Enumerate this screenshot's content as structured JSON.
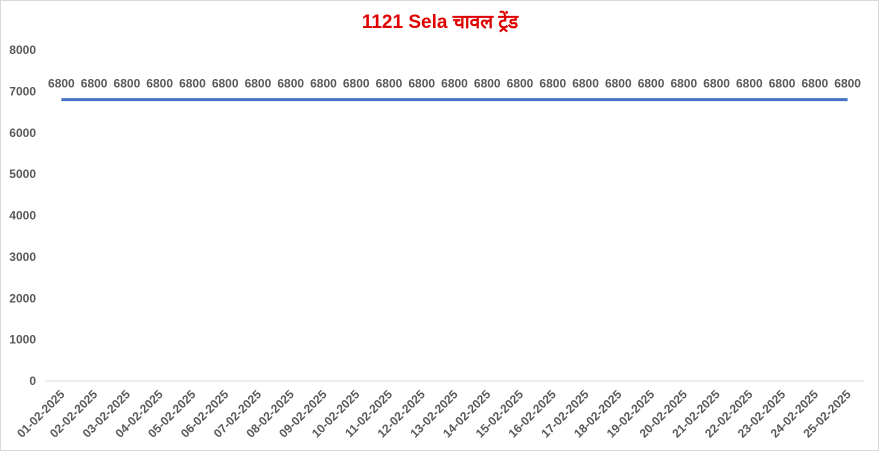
{
  "chart_data": {
    "type": "line",
    "title": "1121 Sela चावल ट्रेंड",
    "categories": [
      "01-02-2025",
      "02-02-2025",
      "03-02-2025",
      "04-02-2025",
      "05-02-2025",
      "06-02-2025",
      "07-02-2025",
      "08-02-2025",
      "09-02-2025",
      "10-02-2025",
      "11-02-2025",
      "12-02-2025",
      "13-02-2025",
      "14-02-2025",
      "15-02-2025",
      "16-02-2025",
      "17-02-2025",
      "18-02-2025",
      "19-02-2025",
      "20-02-2025",
      "21-02-2025",
      "22-02-2025",
      "23-02-2025",
      "24-02-2025",
      "25-02-2025"
    ],
    "values": [
      6800,
      6800,
      6800,
      6800,
      6800,
      6800,
      6800,
      6800,
      6800,
      6800,
      6800,
      6800,
      6800,
      6800,
      6800,
      6800,
      6800,
      6800,
      6800,
      6800,
      6800,
      6800,
      6800,
      6800,
      6800
    ],
    "color": "#4472c4",
    "ylim": [
      0,
      8000
    ],
    "yticks": [
      0,
      1000,
      2000,
      3000,
      4000,
      5000,
      6000,
      7000,
      8000
    ],
    "grid": false
  }
}
